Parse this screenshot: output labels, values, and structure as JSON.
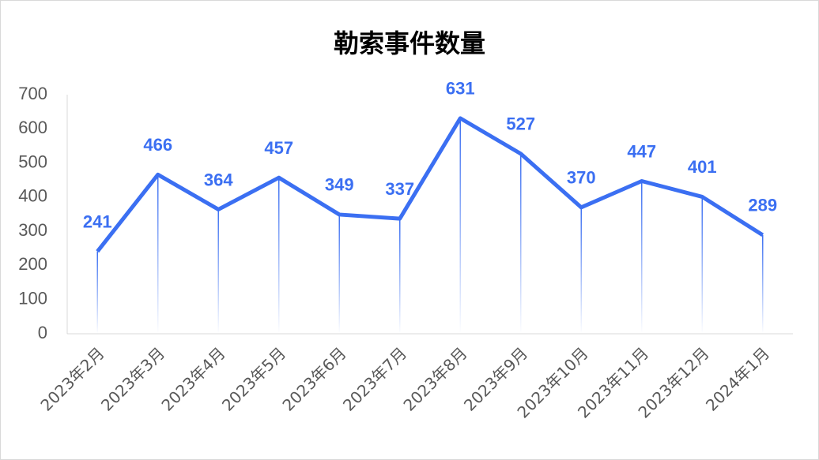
{
  "chart_data": {
    "type": "line",
    "title": "勒索事件数量",
    "categories": [
      "2023年2月",
      "2023年3月",
      "2023年4月",
      "2023年5月",
      "2023年6月",
      "2023年7月",
      "2023年8月",
      "2023年9月",
      "2023年10月",
      "2023年11月",
      "2023年12月",
      "2024年1月"
    ],
    "values": [
      241,
      466,
      364,
      457,
      349,
      337,
      631,
      527,
      370,
      447,
      401,
      289
    ],
    "color": "#3b6ff2",
    "ylim": [
      0,
      700
    ],
    "yticks": [
      0,
      100,
      200,
      300,
      400,
      500,
      600,
      700
    ],
    "grid": false
  }
}
